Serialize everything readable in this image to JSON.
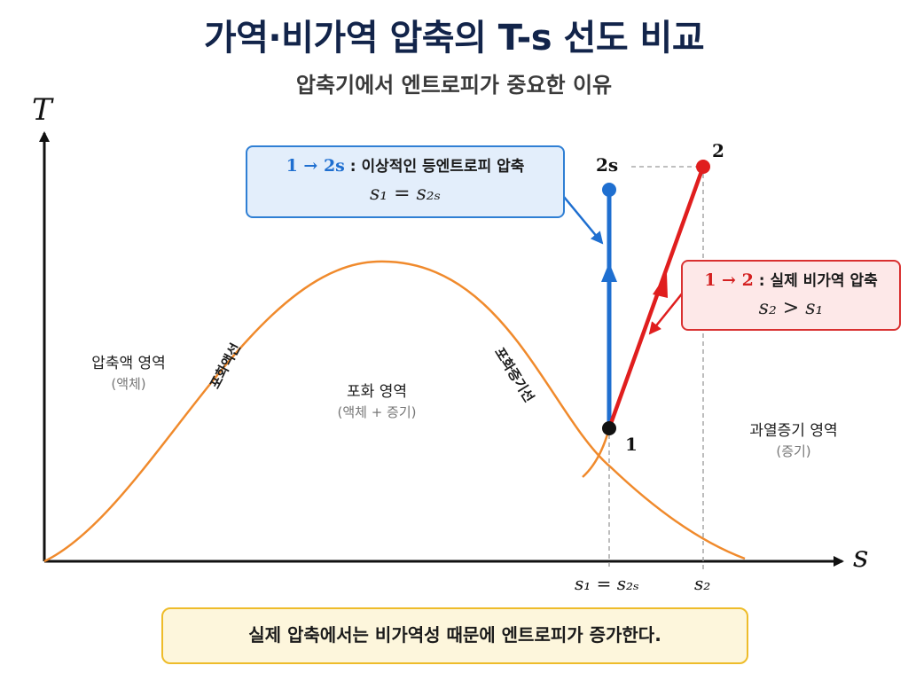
{
  "title": "가역·비가역 압축의 T-s 선도 비교",
  "subtitle": "압축기에서 엔트로피가 중요한 이유",
  "axes": {
    "y_label": "T",
    "x_label": "s",
    "x_ticks": [
      "s₁ = s₂ₛ",
      "s₂"
    ]
  },
  "regions": {
    "compressed_liquid": {
      "name": "압축액 영역",
      "sub": "(액체)"
    },
    "saturated": {
      "name": "포화 영역",
      "sub": "(액체 + 증기)"
    },
    "superheated": {
      "name": "과열증기 영역",
      "sub": "(증기)"
    }
  },
  "curve_labels": {
    "sat_liquid": "포화액선",
    "sat_vapor": "포화증기선"
  },
  "points": {
    "p1": "1",
    "p2": "2",
    "p2s": "2s"
  },
  "callouts": {
    "ideal": {
      "arrow": "1 → 2s",
      "text": " : 이상적인 등엔트로피 압축",
      "formula": "s₁ = s₂ₛ"
    },
    "actual": {
      "arrow": "1 → 2",
      "text": " : 실제 비가역 압축",
      "formula": "s₂ > s₁"
    }
  },
  "footer": "실제 압축에서는 비가역성 때문에 엔트로피가 증가한다.",
  "colors": {
    "dome": "#f08a2c",
    "ideal": "#1f6fd0",
    "actual": "#e01e1e",
    "title": "#12244a"
  }
}
